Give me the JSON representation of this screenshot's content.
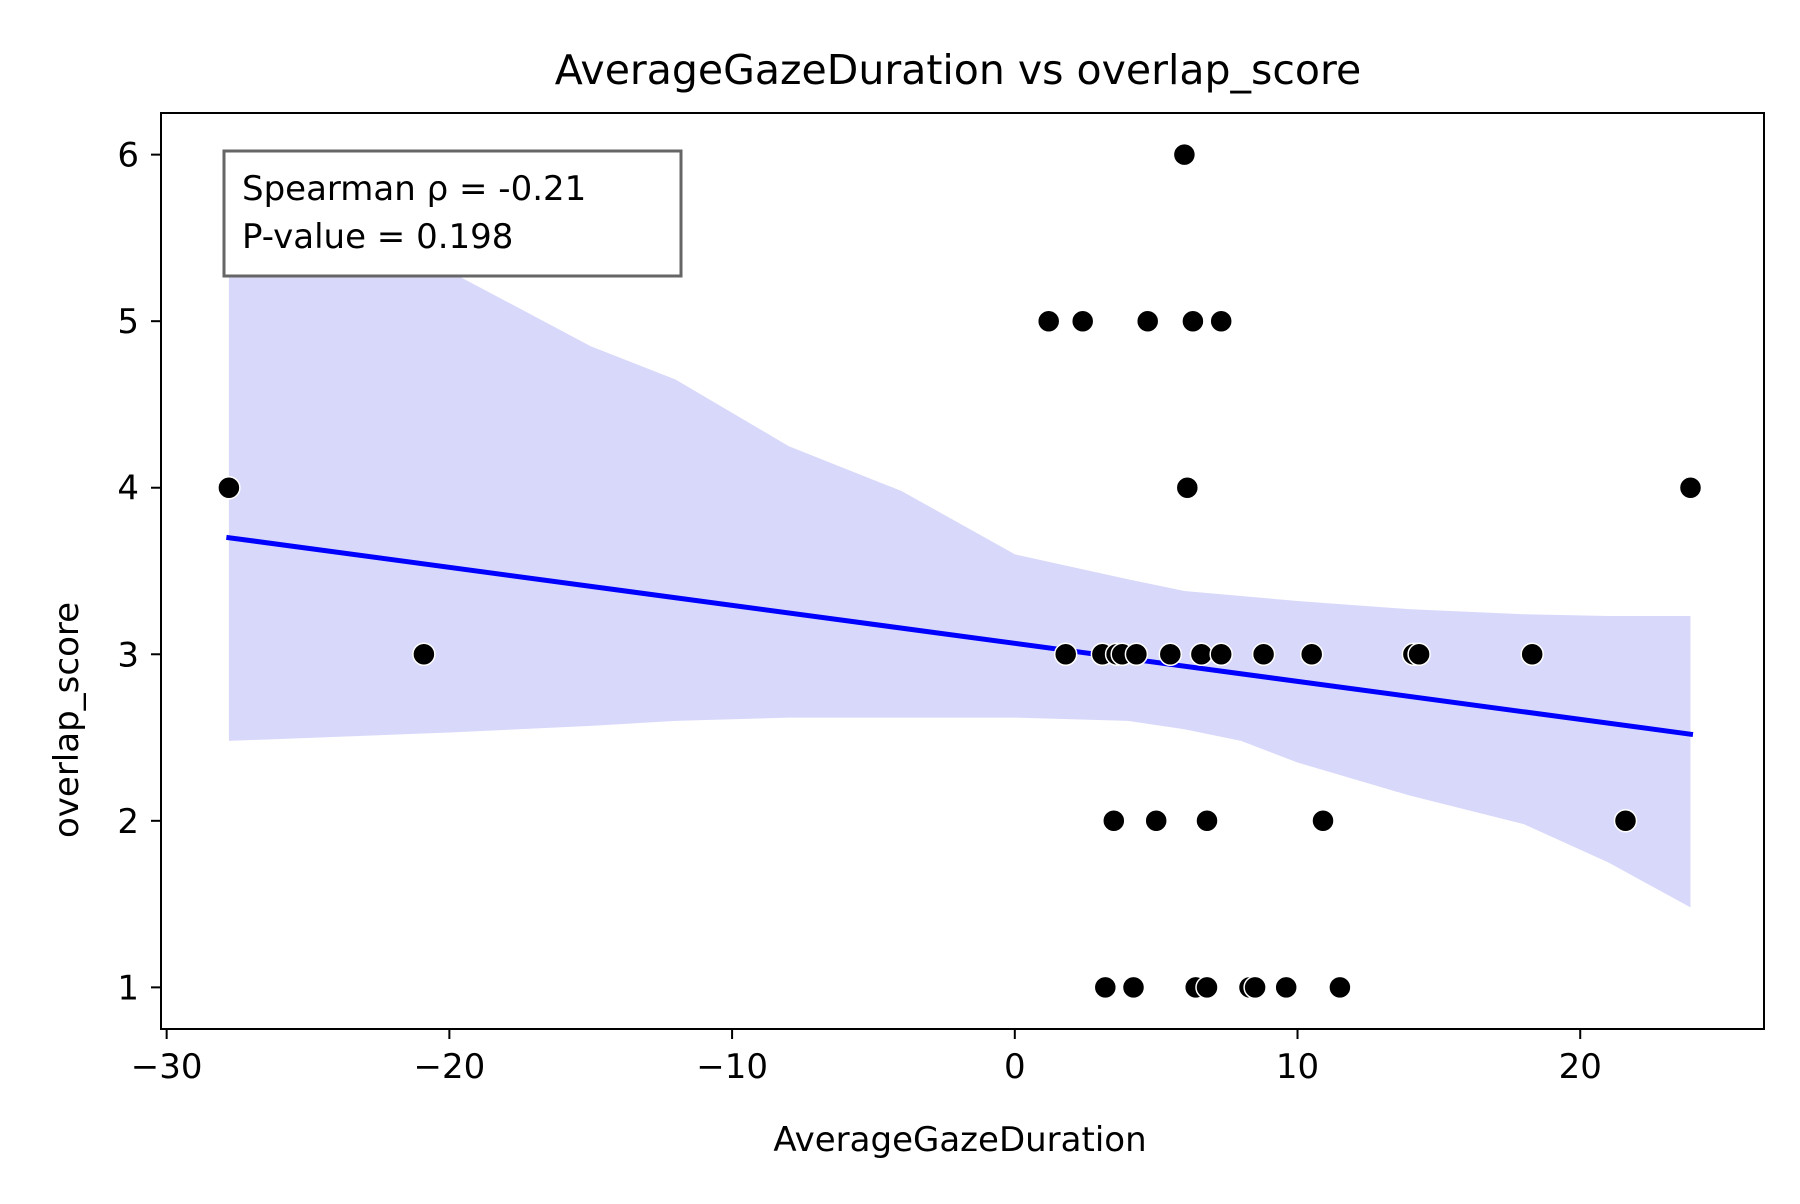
{
  "chart_data": {
    "type": "scatter",
    "title": "AverageGazeDuration vs overlap_score",
    "xlabel": "AverageGazeDuration",
    "ylabel": "overlap_score",
    "xlim": [
      -30.2,
      26.5
    ],
    "ylim": [
      0.75,
      6.25
    ],
    "xticks": [
      -30,
      -20,
      -10,
      0,
      10,
      20
    ],
    "xtick_labels": [
      "−30",
      "−20",
      "−10",
      "0",
      "10",
      "20"
    ],
    "yticks": [
      1,
      2,
      3,
      4,
      5,
      6
    ],
    "ytick_labels": [
      "1",
      "2",
      "3",
      "4",
      "5",
      "6"
    ],
    "grid": false,
    "annotation": {
      "lines": [
        "Spearman ρ = -0.21",
        "P-value = 0.198"
      ],
      "placement": "top-left"
    },
    "series": [
      {
        "kind": "points",
        "color": "#000000",
        "x": [
          -27.8,
          -20.9,
          1.2,
          2.4,
          4.7,
          6.3,
          7.3,
          6.0,
          6.1,
          23.9,
          1.8,
          3.1,
          3.6,
          3.8,
          4.3,
          5.5,
          6.6,
          7.3,
          8.8,
          10.5,
          14.1,
          14.3,
          18.3,
          3.5,
          5.0,
          6.8,
          10.9,
          21.6,
          3.2,
          4.2,
          6.4,
          6.8,
          8.3,
          8.5,
          9.6,
          11.5
        ],
        "y": [
          4,
          3,
          5,
          5,
          5,
          5,
          5,
          6,
          4,
          4,
          3,
          3,
          3,
          3,
          3,
          3,
          3,
          3,
          3,
          3,
          3,
          3,
          3,
          2,
          2,
          2,
          2,
          2,
          1,
          1,
          1,
          1,
          1,
          1,
          1,
          1
        ]
      },
      {
        "kind": "regression-line",
        "color": "#0000ff",
        "x": [
          -27.8,
          23.9
        ],
        "y": [
          3.7,
          2.52
        ]
      },
      {
        "kind": "confidence-band",
        "color": "#d8d8fb",
        "x": [
          -27.8,
          -20,
          -15,
          -12,
          -8,
          -4,
          0,
          4,
          6,
          8,
          10,
          14,
          18,
          21,
          23.9
        ],
        "lower": [
          2.48,
          2.53,
          2.57,
          2.6,
          2.62,
          2.62,
          2.62,
          2.6,
          2.55,
          2.48,
          2.35,
          2.15,
          1.98,
          1.75,
          1.48
        ],
        "upper": [
          5.78,
          5.3,
          4.85,
          4.65,
          4.25,
          3.98,
          3.6,
          3.45,
          3.38,
          3.35,
          3.32,
          3.27,
          3.24,
          3.23,
          3.23
        ]
      }
    ]
  }
}
